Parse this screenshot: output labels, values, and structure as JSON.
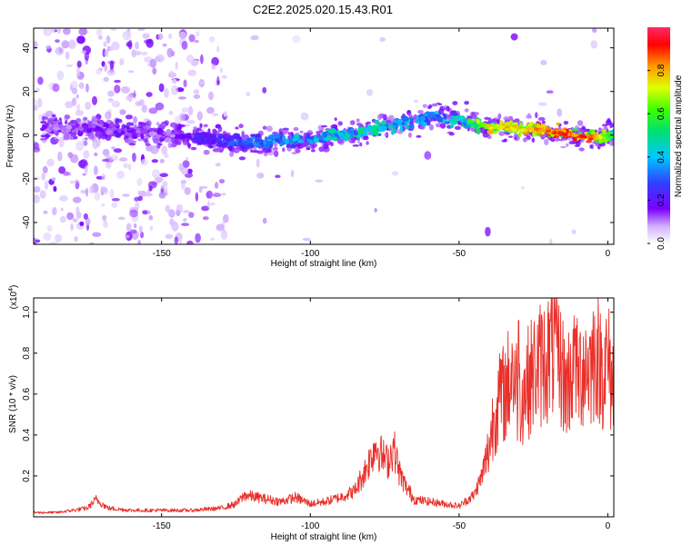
{
  "title": "C2E2.2025.020.15.43.R01",
  "colors": {
    "snr_line": "#e8302a",
    "colormap": [
      "#ffffff",
      "#7a00ff",
      "#3040ff",
      "#00c8ff",
      "#00e070",
      "#40ff00",
      "#e0ff00",
      "#ff9a00",
      "#ff0000",
      "#ff2a6a"
    ]
  },
  "chart_data": [
    {
      "id": "spectrogram",
      "type": "heatmap",
      "title": "C2E2.2025.020.15.43.R01",
      "xlabel": "Height of straight line (km)",
      "ylabel": "Frequency (Hz)",
      "xlim": [
        -193,
        2
      ],
      "ylim": [
        -50,
        49
      ],
      "x_ticks": [
        -150,
        -100,
        -50,
        0
      ],
      "x_tick_labels": [
        "-150",
        "-100",
        "-50",
        "0"
      ],
      "y_ticks": [
        -40,
        -20,
        0,
        20,
        40
      ],
      "y_tick_labels": [
        "-40",
        "-20",
        "0",
        "20",
        "40"
      ],
      "colorbar": {
        "label": "Normalized spectral amplitude",
        "range": [
          0,
          1
        ],
        "ticks": [
          0,
          0.2,
          0.4,
          0.6,
          0.8
        ],
        "tick_labels": [
          "0.0",
          "0.2",
          "0.4",
          "0.6",
          "0.8"
        ]
      },
      "ridge": {
        "x": [
          -188,
          -175,
          -165,
          -155,
          -145,
          -135,
          -125,
          -115,
          -105,
          -95,
          -85,
          -75,
          -65,
          -58,
          -50,
          -45,
          -40,
          -30,
          -20,
          -10,
          -5,
          0
        ],
        "frequency_hz": [
          4,
          3,
          2,
          1,
          0,
          -2,
          -3,
          -3,
          -2,
          -1,
          1,
          4,
          7,
          9,
          7,
          5,
          4,
          3,
          2,
          0,
          -1,
          0
        ],
        "amplitude": [
          0.15,
          0.15,
          0.18,
          0.15,
          0.15,
          0.25,
          0.32,
          0.35,
          0.4,
          0.45,
          0.48,
          0.5,
          0.45,
          0.4,
          0.45,
          0.6,
          0.75,
          0.8,
          0.85,
          0.95,
          0.9,
          0.6
        ]
      },
      "grid": false,
      "legend": "colorbar-right"
    },
    {
      "id": "snr",
      "type": "line",
      "xlabel": "Height of straight line (km)",
      "ylabel": "SNR (10 * v/v)",
      "y_multiplier_label": "(x10^4)",
      "xlim": [
        -193,
        2
      ],
      "ylim": [
        0,
        1.07
      ],
      "x_ticks": [
        -150,
        -100,
        -50,
        0
      ],
      "x_tick_labels": [
        "-150",
        "-100",
        "-50",
        "0"
      ],
      "y_ticks": [
        0.2,
        0.4,
        0.6,
        0.8,
        1.0
      ],
      "y_tick_labels": [
        "0.2",
        "0.4",
        "0.6",
        "0.8",
        "1.0"
      ],
      "series": [
        {
          "x": [
            -193,
            -185,
            -180,
            -175,
            -172,
            -168,
            -160,
            -150,
            -140,
            -130,
            -125,
            -122,
            -118,
            -110,
            -105,
            -100,
            -95,
            -90,
            -85,
            -82,
            -80,
            -78,
            -76,
            -74,
            -72,
            -70,
            -68,
            -65,
            -60,
            -55,
            -50,
            -45,
            -42,
            -40,
            -38,
            -36,
            -34,
            -32,
            -30,
            -28,
            -26,
            -24,
            -22,
            -20,
            -18,
            -16,
            -14,
            -12,
            -10,
            -8,
            -6,
            -4,
            -2,
            0,
            2
          ],
          "y": [
            0.02,
            0.02,
            0.03,
            0.04,
            0.08,
            0.04,
            0.03,
            0.03,
            0.03,
            0.04,
            0.06,
            0.1,
            0.09,
            0.07,
            0.09,
            0.06,
            0.07,
            0.09,
            0.12,
            0.2,
            0.26,
            0.33,
            0.28,
            0.25,
            0.32,
            0.2,
            0.14,
            0.08,
            0.07,
            0.06,
            0.05,
            0.1,
            0.2,
            0.32,
            0.5,
            0.55,
            0.6,
            0.7,
            0.55,
            0.6,
            0.65,
            0.7,
            0.72,
            0.75,
            0.8,
            0.72,
            0.6,
            0.7,
            0.65,
            0.72,
            0.7,
            0.78,
            0.7,
            0.72,
            0.6
          ]
        }
      ],
      "peaks": [
        {
          "x": -18,
          "y": 1.07
        },
        {
          "x": -30,
          "y": 0.96
        },
        {
          "x": -36,
          "y": 0.77
        },
        {
          "x": -3,
          "y": 0.93
        },
        {
          "x": -11,
          "y": 0.92
        }
      ],
      "grid": false
    }
  ]
}
